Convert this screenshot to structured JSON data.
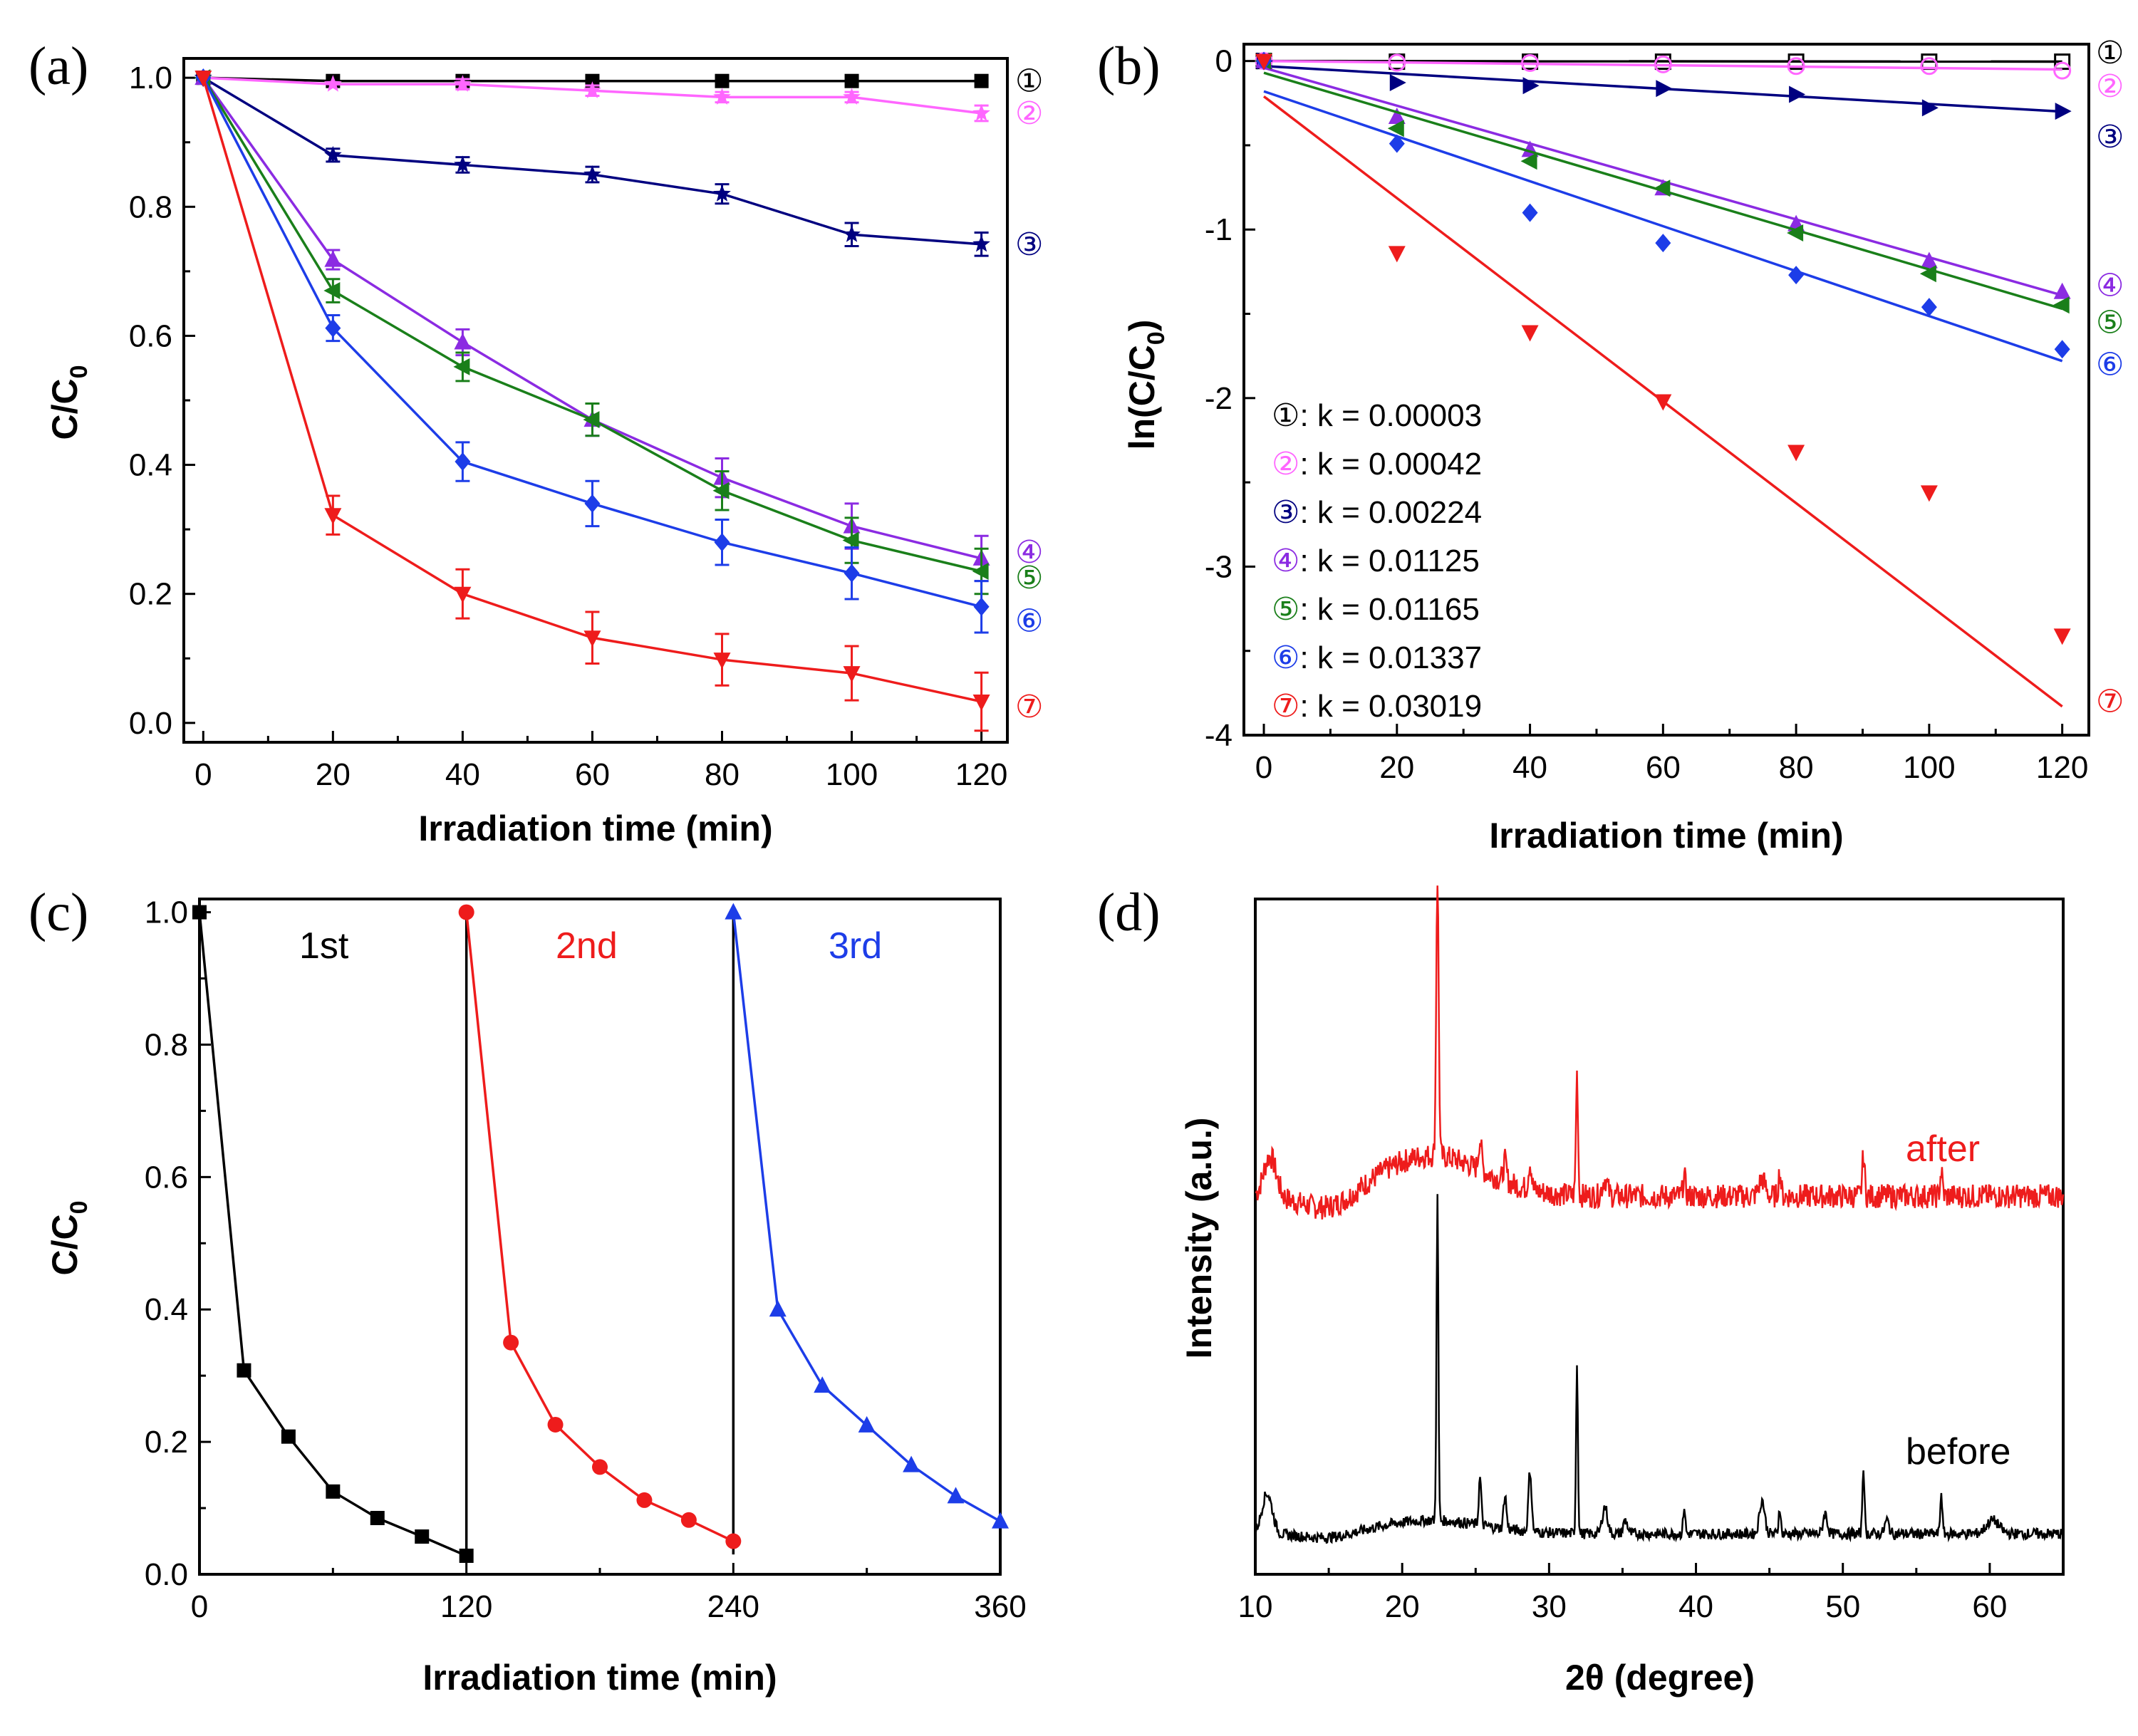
{
  "chart_data": [
    {
      "panel": "(a)",
      "type": "line",
      "xlabel": "Irradiation time (min)",
      "ylabel": "C/C",
      "ylabel_subscript": "0",
      "xlim": [
        -3,
        124
      ],
      "ylim": [
        -0.03,
        1.03
      ],
      "xticks": [
        0,
        20,
        40,
        60,
        80,
        100,
        120
      ],
      "yticks": [
        "0.0",
        "0.2",
        "0.4",
        "0.6",
        "0.8",
        "1.0"
      ],
      "x": [
        0,
        20,
        40,
        60,
        80,
        100,
        120
      ],
      "series": [
        {
          "name": "①",
          "color": "#000000",
          "marker": "square",
          "values": [
            1.0,
            0.995,
            0.995,
            0.995,
            0.995,
            0.995,
            0.995
          ],
          "errors": [
            0.005,
            0.005,
            0.005,
            0.005,
            0.005,
            0.005,
            0.005
          ]
        },
        {
          "name": "②",
          "color": "#ff66ff",
          "marker": "star",
          "values": [
            1.0,
            0.99,
            0.99,
            0.98,
            0.97,
            0.97,
            0.945
          ],
          "errors": [
            0.005,
            0.005,
            0.008,
            0.008,
            0.008,
            0.008,
            0.012
          ]
        },
        {
          "name": "③",
          "color": "#000080",
          "marker": "star",
          "values": [
            1.0,
            0.88,
            0.865,
            0.85,
            0.82,
            0.757,
            0.742
          ],
          "errors": [
            0.005,
            0.01,
            0.012,
            0.012,
            0.015,
            0.018,
            0.018
          ]
        },
        {
          "name": "④",
          "color": "#8b2be2",
          "marker": "triangle-up",
          "values": [
            1.0,
            0.718,
            0.59,
            0.47,
            0.38,
            0.305,
            0.255
          ],
          "errors": [
            0.005,
            0.015,
            0.02,
            0.025,
            0.03,
            0.035,
            0.035
          ]
        },
        {
          "name": "⑤",
          "color": "#1a7f1a",
          "marker": "triangle-left",
          "values": [
            1.0,
            0.67,
            0.552,
            0.47,
            0.36,
            0.283,
            0.235
          ],
          "errors": [
            0.005,
            0.018,
            0.022,
            0.025,
            0.03,
            0.035,
            0.035
          ]
        },
        {
          "name": "⑥",
          "color": "#1d3de8",
          "marker": "diamond",
          "values": [
            1.0,
            0.612,
            0.405,
            0.34,
            0.28,
            0.232,
            0.18
          ],
          "errors": [
            0.005,
            0.02,
            0.03,
            0.035,
            0.035,
            0.04,
            0.04
          ]
        },
        {
          "name": "⑦",
          "color": "#ee1c1c",
          "marker": "triangle-down",
          "values": [
            1.0,
            0.322,
            0.2,
            0.132,
            0.098,
            0.077,
            0.033
          ],
          "errors": [
            0.005,
            0.03,
            0.038,
            0.04,
            0.04,
            0.042,
            0.045
          ]
        }
      ]
    },
    {
      "panel": "(b)",
      "type": "scatter",
      "xlabel": "Irradiation time (min)",
      "ylabel": "ln(C/C",
      "ylabel_subscript": "0",
      "ylabel_suffix": ")",
      "xlim": [
        -3,
        124
      ],
      "ylim": [
        -4.0,
        0.1
      ],
      "xticks": [
        0,
        20,
        40,
        60,
        80,
        100,
        120
      ],
      "yticks": [
        "-4",
        "-3",
        "-2",
        "-1",
        "0"
      ],
      "x": [
        0,
        20,
        40,
        60,
        80,
        100,
        120
      ],
      "series": [
        {
          "name": "①",
          "color": "#000000",
          "marker": "square-open",
          "k": "0.00003",
          "values": [
            0,
            -0.004,
            -0.004,
            -0.004,
            -0.004,
            -0.004,
            -0.004
          ],
          "fit": [
            0,
            -0.0036
          ]
        },
        {
          "name": "②",
          "color": "#ff66ff",
          "marker": "circle-open",
          "k": "0.00042",
          "values": [
            0,
            -0.01,
            -0.012,
            -0.02,
            -0.03,
            -0.03,
            -0.057
          ],
          "fit": [
            0,
            -0.05
          ]
        },
        {
          "name": "③",
          "color": "#000080",
          "marker": "triangle-right",
          "k": "0.00224",
          "values": [
            0,
            -0.128,
            -0.146,
            -0.163,
            -0.198,
            -0.278,
            -0.298
          ],
          "fit": [
            -0.03,
            -0.3
          ]
        },
        {
          "name": "④",
          "color": "#8b2be2",
          "marker": "triangle-up",
          "k": "0.01125",
          "values": [
            0,
            -0.331,
            -0.527,
            -0.755,
            -0.968,
            -1.187,
            -1.37
          ],
          "fit": [
            -0.04,
            -1.39
          ]
        },
        {
          "name": "⑤",
          "color": "#1a7f1a",
          "marker": "triangle-left",
          "k": "0.01165",
          "values": [
            0,
            -0.4,
            -0.594,
            -0.755,
            -1.02,
            -1.262,
            -1.448
          ],
          "fit": [
            -0.07,
            -1.47
          ]
        },
        {
          "name": "⑥",
          "color": "#1d3de8",
          "marker": "diamond",
          "k": "0.01337",
          "labeled": "true",
          "values": [
            0,
            -0.49,
            -0.9,
            -1.08,
            -1.27,
            -1.46,
            -1.71
          ],
          "fit": [
            -0.18,
            -1.78
          ]
        },
        {
          "name": "⑦",
          "color": "#ee1c1c",
          "marker": "triangle-down",
          "k": "0.03019",
          "values": [
            0,
            -1.14,
            -1.61,
            -2.02,
            -2.32,
            -2.56,
            -3.41
          ],
          "fit": [
            -0.21,
            -3.83
          ]
        }
      ],
      "legend_prefix": ": k = ",
      "legend_entries": [
        "①: k = 0.00003",
        "②: k = 0.00042",
        "③: k = 0.00224",
        "④: k = 0.01125",
        "⑤: k = 0.01165",
        "⑥: k = 0.01337",
        "⑦: k = 0.03019"
      ]
    },
    {
      "panel": "(c)",
      "type": "line",
      "xlabel": "Irradiation time (min)",
      "ylabel": "C/C",
      "ylabel_subscript": "0",
      "xlim": [
        0,
        360
      ],
      "ylim": [
        0,
        1.02
      ],
      "xticks": [
        0,
        120,
        240,
        360
      ],
      "yticks": [
        "0.0",
        "0.2",
        "0.4",
        "0.6",
        "0.8",
        "1.0"
      ],
      "series": [
        {
          "name": "1st",
          "color": "#000000",
          "marker": "square",
          "x": [
            0,
            20,
            40,
            60,
            80,
            100,
            120
          ],
          "values": [
            1.0,
            0.308,
            0.208,
            0.125,
            0.085,
            0.057,
            0.028
          ]
        },
        {
          "name": "2nd",
          "color": "#ee1c1c",
          "marker": "circle",
          "x": [
            120,
            140,
            160,
            180,
            200,
            220,
            240
          ],
          "values": [
            1.0,
            0.35,
            0.226,
            0.162,
            0.112,
            0.082,
            0.05
          ]
        },
        {
          "name": "3rd",
          "color": "#1d3de8",
          "marker": "triangle-up",
          "x": [
            240,
            260,
            280,
            300,
            320,
            340,
            360
          ],
          "values": [
            1.0,
            0.4,
            0.285,
            0.225,
            0.165,
            0.118,
            0.08
          ]
        }
      ],
      "connectors": [
        120,
        240
      ]
    },
    {
      "panel": "(d)",
      "type": "line",
      "xlabel": "2θ (degree)",
      "ylabel": "Intensity (a.u.)",
      "xlim": [
        10,
        65
      ],
      "ylim": [
        0,
        1
      ],
      "xticks": [
        10,
        20,
        30,
        40,
        50,
        60
      ],
      "series": [
        {
          "name": "after",
          "color": "#ee1c1c",
          "baseline": 0.56,
          "noise": 0.018,
          "peaks": [
            [
              11,
              0.06,
              0.6
            ],
            [
              22.4,
              0.41,
              0.12
            ],
            [
              25.3,
              0.045,
              0.15
            ],
            [
              27,
              0.03,
              0.15
            ],
            [
              28.7,
              0.04,
              0.15
            ],
            [
              31.9,
              0.18,
              0.1
            ],
            [
              33.8,
              0.025,
              0.25
            ],
            [
              39.2,
              0.03,
              0.12
            ],
            [
              44.5,
              0.025,
              0.3
            ],
            [
              45.7,
              0.035,
              0.12
            ],
            [
              51.4,
              0.06,
              0.12
            ],
            [
              56.7,
              0.035,
              0.12
            ]
          ],
          "hump": 0.06
        },
        {
          "name": "before",
          "color": "#000000",
          "baseline": 0.06,
          "noise": 0.008,
          "peaks": [
            [
              10.8,
              0.06,
              0.5
            ],
            [
              22.4,
              0.48,
              0.09
            ],
            [
              25.3,
              0.07,
              0.12
            ],
            [
              27,
              0.05,
              0.14
            ],
            [
              28.7,
              0.09,
              0.15
            ],
            [
              31.9,
              0.25,
              0.09
            ],
            [
              33.8,
              0.04,
              0.25
            ],
            [
              35.2,
              0.02,
              0.2
            ],
            [
              39.2,
              0.04,
              0.1
            ],
            [
              44.5,
              0.05,
              0.25
            ],
            [
              45.7,
              0.04,
              0.1
            ],
            [
              48.8,
              0.03,
              0.2
            ],
            [
              51.4,
              0.1,
              0.1
            ],
            [
              53,
              0.02,
              0.2
            ],
            [
              56.7,
              0.06,
              0.1
            ],
            [
              60.2,
              0.02,
              0.6
            ]
          ],
          "hump": 0.02
        }
      ],
      "labels": [
        "after",
        "before"
      ]
    }
  ]
}
